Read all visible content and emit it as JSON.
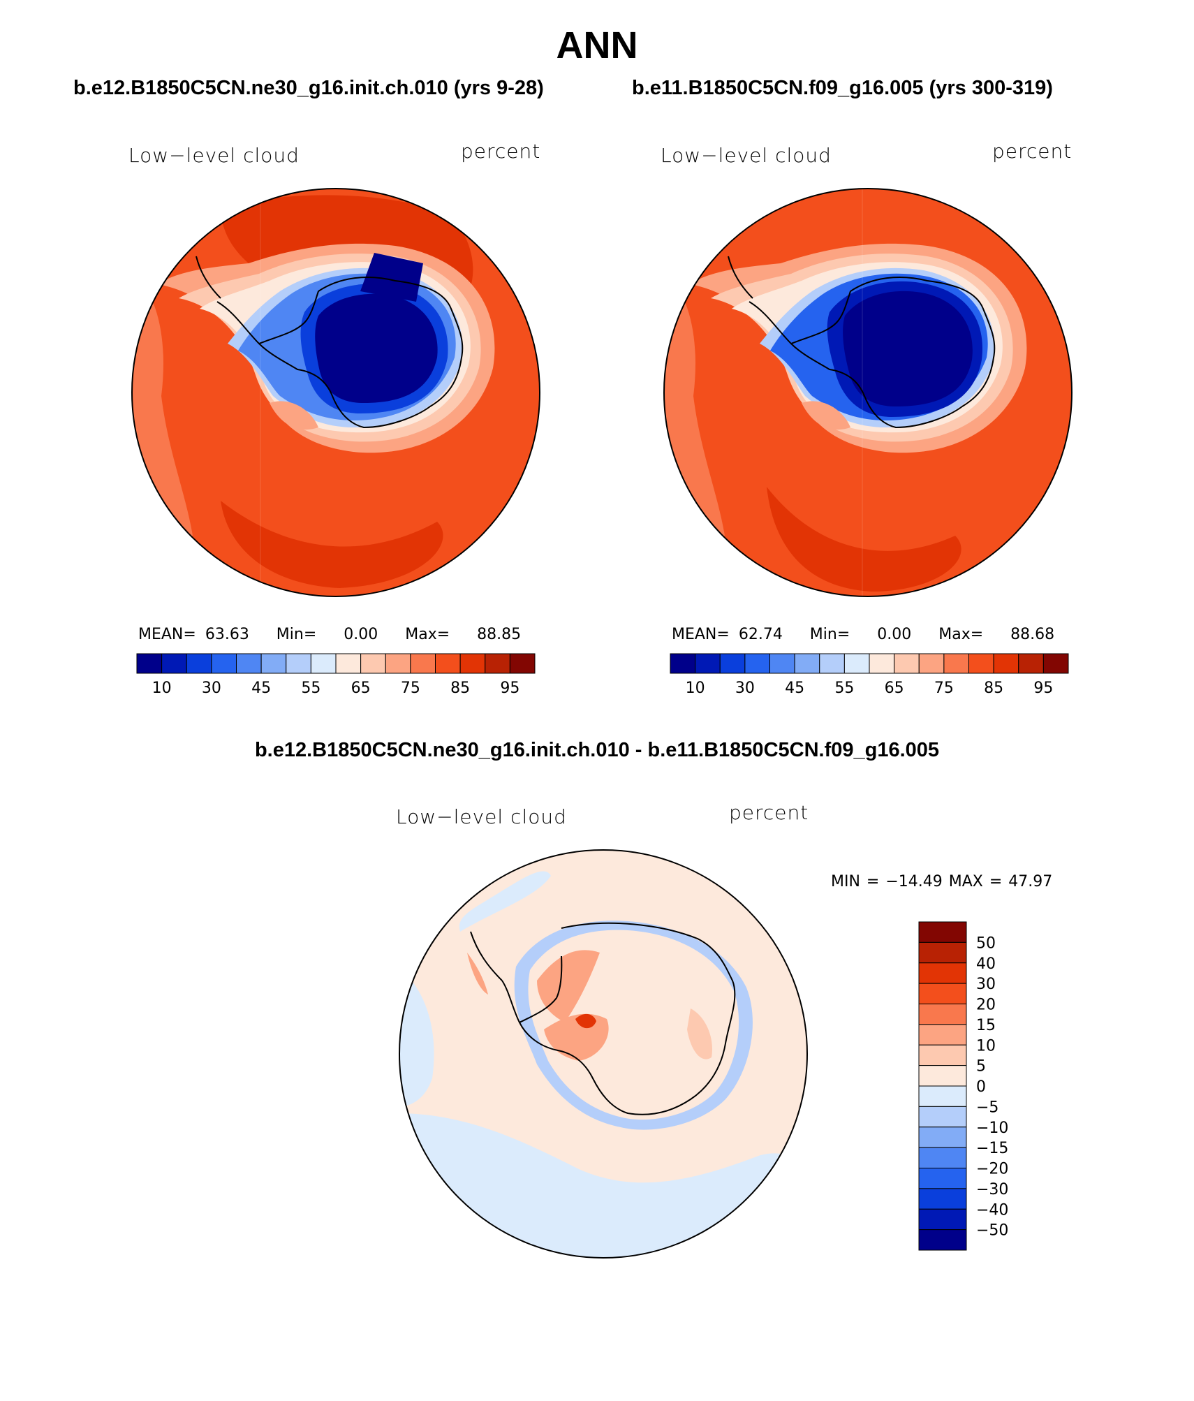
{
  "season": "ANN",
  "panels": [
    {
      "case_title": "b.e12.B1850C5CN.ne30_g16.init.ch.010 (yrs 9-28)",
      "variable_label": "Low−level cloud",
      "units_label": "percent",
      "stats": {
        "mean_label": "MEAN=",
        "mean": "63.63",
        "min_label": "Min=",
        "min": "0.00",
        "max_label": "Max=",
        "max": "88.85"
      }
    },
    {
      "case_title": "b.e11.B1850C5CN.f09_g16.005 (yrs 300-319)",
      "variable_label": "Low−level cloud",
      "units_label": "percent",
      "stats": {
        "mean_label": "MEAN=",
        "mean": "62.74",
        "min_label": "Min=",
        "min": "0.00",
        "max_label": "Max=",
        "max": "88.68"
      }
    }
  ],
  "diff_panel": {
    "case_title": "b.e12.B1850C5CN.ne30_g16.init.ch.010 - b.e11.B1850C5CN.f09_g16.005",
    "variable_label": "Low−level cloud",
    "units_label": "percent",
    "minmax_text": "MIN = −14.49 MAX =  47.97"
  },
  "chart_data": [
    {
      "type": "heatmap",
      "projection": "south-polar-stereographic",
      "title": "b.e12.B1850C5CN.ne30_g16.init.ch.010 (yrs 9-28)",
      "variable": "Low−level cloud",
      "units": "percent",
      "mean": 63.63,
      "min": 0.0,
      "max": 88.85,
      "colorbar": {
        "orientation": "horizontal",
        "tick_labels": [
          "10",
          "30",
          "45",
          "55",
          "65",
          "75",
          "85",
          "95"
        ],
        "colors": [
          "#00008a",
          "#0019b5",
          "#0a3fdc",
          "#2563ef",
          "#4f86f3",
          "#82acf6",
          "#b4cefa",
          "#dbebfc",
          "#fde9dc",
          "#fdc9b0",
          "#fca482",
          "#f9784d",
          "#f34f1c",
          "#e23405",
          "#b82204",
          "#820602"
        ]
      }
    },
    {
      "type": "heatmap",
      "projection": "south-polar-stereographic",
      "title": "b.e11.B1850C5CN.f09_g16.005 (yrs 300-319)",
      "variable": "Low−level cloud",
      "units": "percent",
      "mean": 62.74,
      "min": 0.0,
      "max": 88.68,
      "colorbar": {
        "orientation": "horizontal",
        "tick_labels": [
          "10",
          "30",
          "45",
          "55",
          "65",
          "75",
          "85",
          "95"
        ],
        "colors": [
          "#00008a",
          "#0019b5",
          "#0a3fdc",
          "#2563ef",
          "#4f86f3",
          "#82acf6",
          "#b4cefa",
          "#dbebfc",
          "#fde9dc",
          "#fdc9b0",
          "#fca482",
          "#f9784d",
          "#f34f1c",
          "#e23405",
          "#b82204",
          "#820602"
        ]
      }
    },
    {
      "type": "heatmap",
      "projection": "south-polar-stereographic",
      "title": "b.e12.B1850C5CN.ne30_g16.init.ch.010 - b.e11.B1850C5CN.f09_g16.005",
      "variable": "Low−level cloud",
      "units": "percent",
      "min": -14.49,
      "max": 47.97,
      "colorbar": {
        "orientation": "vertical",
        "tick_labels": [
          "50",
          "40",
          "30",
          "20",
          "15",
          "10",
          "5",
          "0",
          "−5",
          "−10",
          "−15",
          "−20",
          "−30",
          "−40",
          "−50"
        ],
        "colors": [
          "#820602",
          "#b82204",
          "#e23405",
          "#f34f1c",
          "#f9784d",
          "#fca482",
          "#fdc9b0",
          "#fde9dc",
          "#dbebfc",
          "#b4cefa",
          "#82acf6",
          "#4f86f3",
          "#2563ef",
          "#0a3fdc",
          "#0019b5",
          "#00008a"
        ]
      }
    }
  ]
}
